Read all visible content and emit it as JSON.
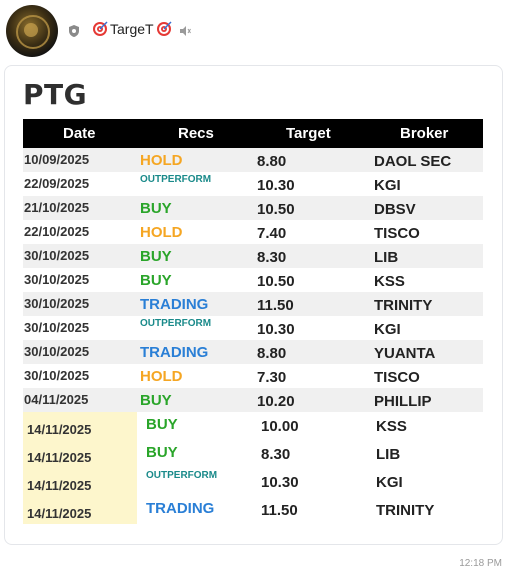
{
  "header": {
    "channel_name": "TargeT",
    "avatar_icon": "team-logo",
    "status_icon": "shield-icon",
    "mute_icon": "speaker-muted-icon"
  },
  "card": {
    "title": "PTG",
    "columns": [
      "Date",
      "Recs",
      "Target",
      "Broker"
    ],
    "rows": [
      {
        "date": "10/09/2025",
        "rec": "HOLD",
        "target": "8.80",
        "broker": "DAOL SEC"
      },
      {
        "date": "22/09/2025",
        "rec": "OUTPERFORM",
        "target": "10.30",
        "broker": "KGI"
      },
      {
        "date": "21/10/2025",
        "rec": "BUY",
        "target": "10.50",
        "broker": "DBSV"
      },
      {
        "date": "22/10/2025",
        "rec": "HOLD",
        "target": "7.40",
        "broker": "TISCO"
      },
      {
        "date": "30/10/2025",
        "rec": "BUY",
        "target": "8.30",
        "broker": "LIB"
      },
      {
        "date": "30/10/2025",
        "rec": "BUY",
        "target": "10.50",
        "broker": "KSS"
      },
      {
        "date": "30/10/2025",
        "rec": "TRADING",
        "target": "11.50",
        "broker": "TRINITY"
      },
      {
        "date": "30/10/2025",
        "rec": "OUTPERFORM",
        "target": "10.30",
        "broker": "KGI"
      },
      {
        "date": "30/10/2025",
        "rec": "TRADING",
        "target": "8.80",
        "broker": "YUANTA"
      },
      {
        "date": "30/10/2025",
        "rec": "HOLD",
        "target": "7.30",
        "broker": "TISCO"
      },
      {
        "date": "04/11/2025",
        "rec": "BUY",
        "target": "10.20",
        "broker": "PHILLIP"
      },
      {
        "date": "14/11/2025",
        "rec": "BUY",
        "target": "10.00",
        "broker": "KSS"
      },
      {
        "date": "14/11/2025",
        "rec": "BUY",
        "target": "8.30",
        "broker": "LIB"
      },
      {
        "date": "14/11/2025",
        "rec": "OUTPERFORM",
        "target": "10.30",
        "broker": "KGI"
      },
      {
        "date": "14/11/2025",
        "rec": "TRADING",
        "target": "11.50",
        "broker": "TRINITY"
      }
    ]
  },
  "rec_colors": {
    "HOLD": "#f5a623",
    "BUY": "#2aa52a",
    "OUTPERFORM": "#1a8a8a",
    "TRADING": "#2a7fd6"
  },
  "timestamp": "12:18 PM"
}
